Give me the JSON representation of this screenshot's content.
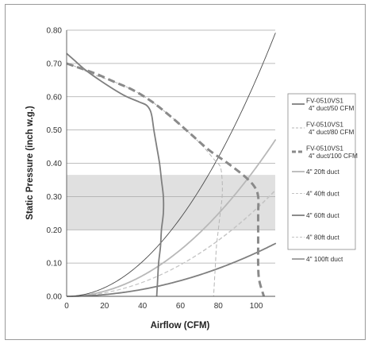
{
  "chart_data": {
    "type": "line",
    "title": "",
    "xlabel": "Airflow (CFM)",
    "ylabel": "Static Pressure (inch w.g.)",
    "xlim": [
      0,
      110
    ],
    "ylim": [
      0,
      0.8
    ],
    "x_ticks": [
      "0",
      "20",
      "40",
      "60",
      "80",
      "100"
    ],
    "y_ticks": [
      "0.00",
      "0.10",
      "0.20",
      "0.30",
      "0.40",
      "0.50",
      "0.60",
      "0.70",
      "0.80"
    ],
    "grid": "horizontal",
    "legend_position": "right",
    "shaded_band": {
      "y_from": 0.2,
      "y_to": 0.365
    },
    "series": [
      {
        "name_lines": [
          "FV-0510VS1",
          "4\" duct/50 CFM"
        ],
        "style": "solid-medium",
        "points": [
          [
            0,
            0.73
          ],
          [
            4,
            0.71
          ],
          [
            10,
            0.68
          ],
          [
            20,
            0.64
          ],
          [
            30,
            0.605
          ],
          [
            38,
            0.585
          ],
          [
            42,
            0.575
          ],
          [
            44,
            0.56
          ],
          [
            45,
            0.54
          ],
          [
            46,
            0.5
          ],
          [
            47.5,
            0.45
          ],
          [
            49,
            0.4
          ],
          [
            50,
            0.35
          ],
          [
            51,
            0.3
          ],
          [
            51,
            0.25
          ],
          [
            50,
            0.2
          ],
          [
            49.5,
            0.15
          ],
          [
            48.5,
            0.1
          ],
          [
            48,
            0.05
          ],
          [
            47.5,
            0
          ]
        ]
      },
      {
        "name_lines": [
          "FV-0510VS1",
          "4\" duct/80 CFM"
        ],
        "style": "dashed-thin",
        "points": [
          [
            0,
            0.7
          ],
          [
            5,
            0.69
          ],
          [
            15,
            0.665
          ],
          [
            25,
            0.645
          ],
          [
            35,
            0.62
          ],
          [
            45,
            0.585
          ],
          [
            55,
            0.54
          ],
          [
            65,
            0.49
          ],
          [
            72,
            0.45
          ],
          [
            78,
            0.41
          ],
          [
            81,
            0.39
          ],
          [
            82,
            0.35
          ],
          [
            82,
            0.3
          ],
          [
            81,
            0.25
          ],
          [
            80,
            0.2
          ],
          [
            79,
            0.15
          ],
          [
            78.5,
            0.1
          ],
          [
            78,
            0.05
          ],
          [
            77.5,
            0
          ]
        ]
      },
      {
        "name_lines": [
          "FV-0510VS1",
          "4\" duct/100 CFM"
        ],
        "style": "dashed-thick",
        "points": [
          [
            0,
            0.7
          ],
          [
            5,
            0.69
          ],
          [
            15,
            0.67
          ],
          [
            25,
            0.645
          ],
          [
            35,
            0.62
          ],
          [
            45,
            0.585
          ],
          [
            55,
            0.54
          ],
          [
            65,
            0.49
          ],
          [
            75,
            0.44
          ],
          [
            85,
            0.4
          ],
          [
            94,
            0.36
          ],
          [
            99,
            0.33
          ],
          [
            101,
            0.3
          ],
          [
            101,
            0.25
          ],
          [
            101,
            0.2
          ],
          [
            101,
            0.15
          ],
          [
            101,
            0.1
          ],
          [
            101.5,
            0.05
          ],
          [
            104,
            0
          ]
        ]
      },
      {
        "name": "4\" 20ft duct",
        "style": "solid-medium-light",
        "coefficient": 3.88e-05
      },
      {
        "name": "4\" 40ft duct",
        "style": "dashed-thin-light",
        "coefficient": 2.62e-05
      },
      {
        "name": "4\" 60ft duct",
        "style": "solid-medium",
        "coefficient": 1.31e-05
      },
      {
        "name": "4\" 80ft duct",
        "style": "dashed-thin-light",
        "coefficient": 2.64e-05
      },
      {
        "name": "4\" 100ft duct",
        "style": "solid-thin-dark",
        "coefficient": 6.53e-05
      }
    ]
  }
}
